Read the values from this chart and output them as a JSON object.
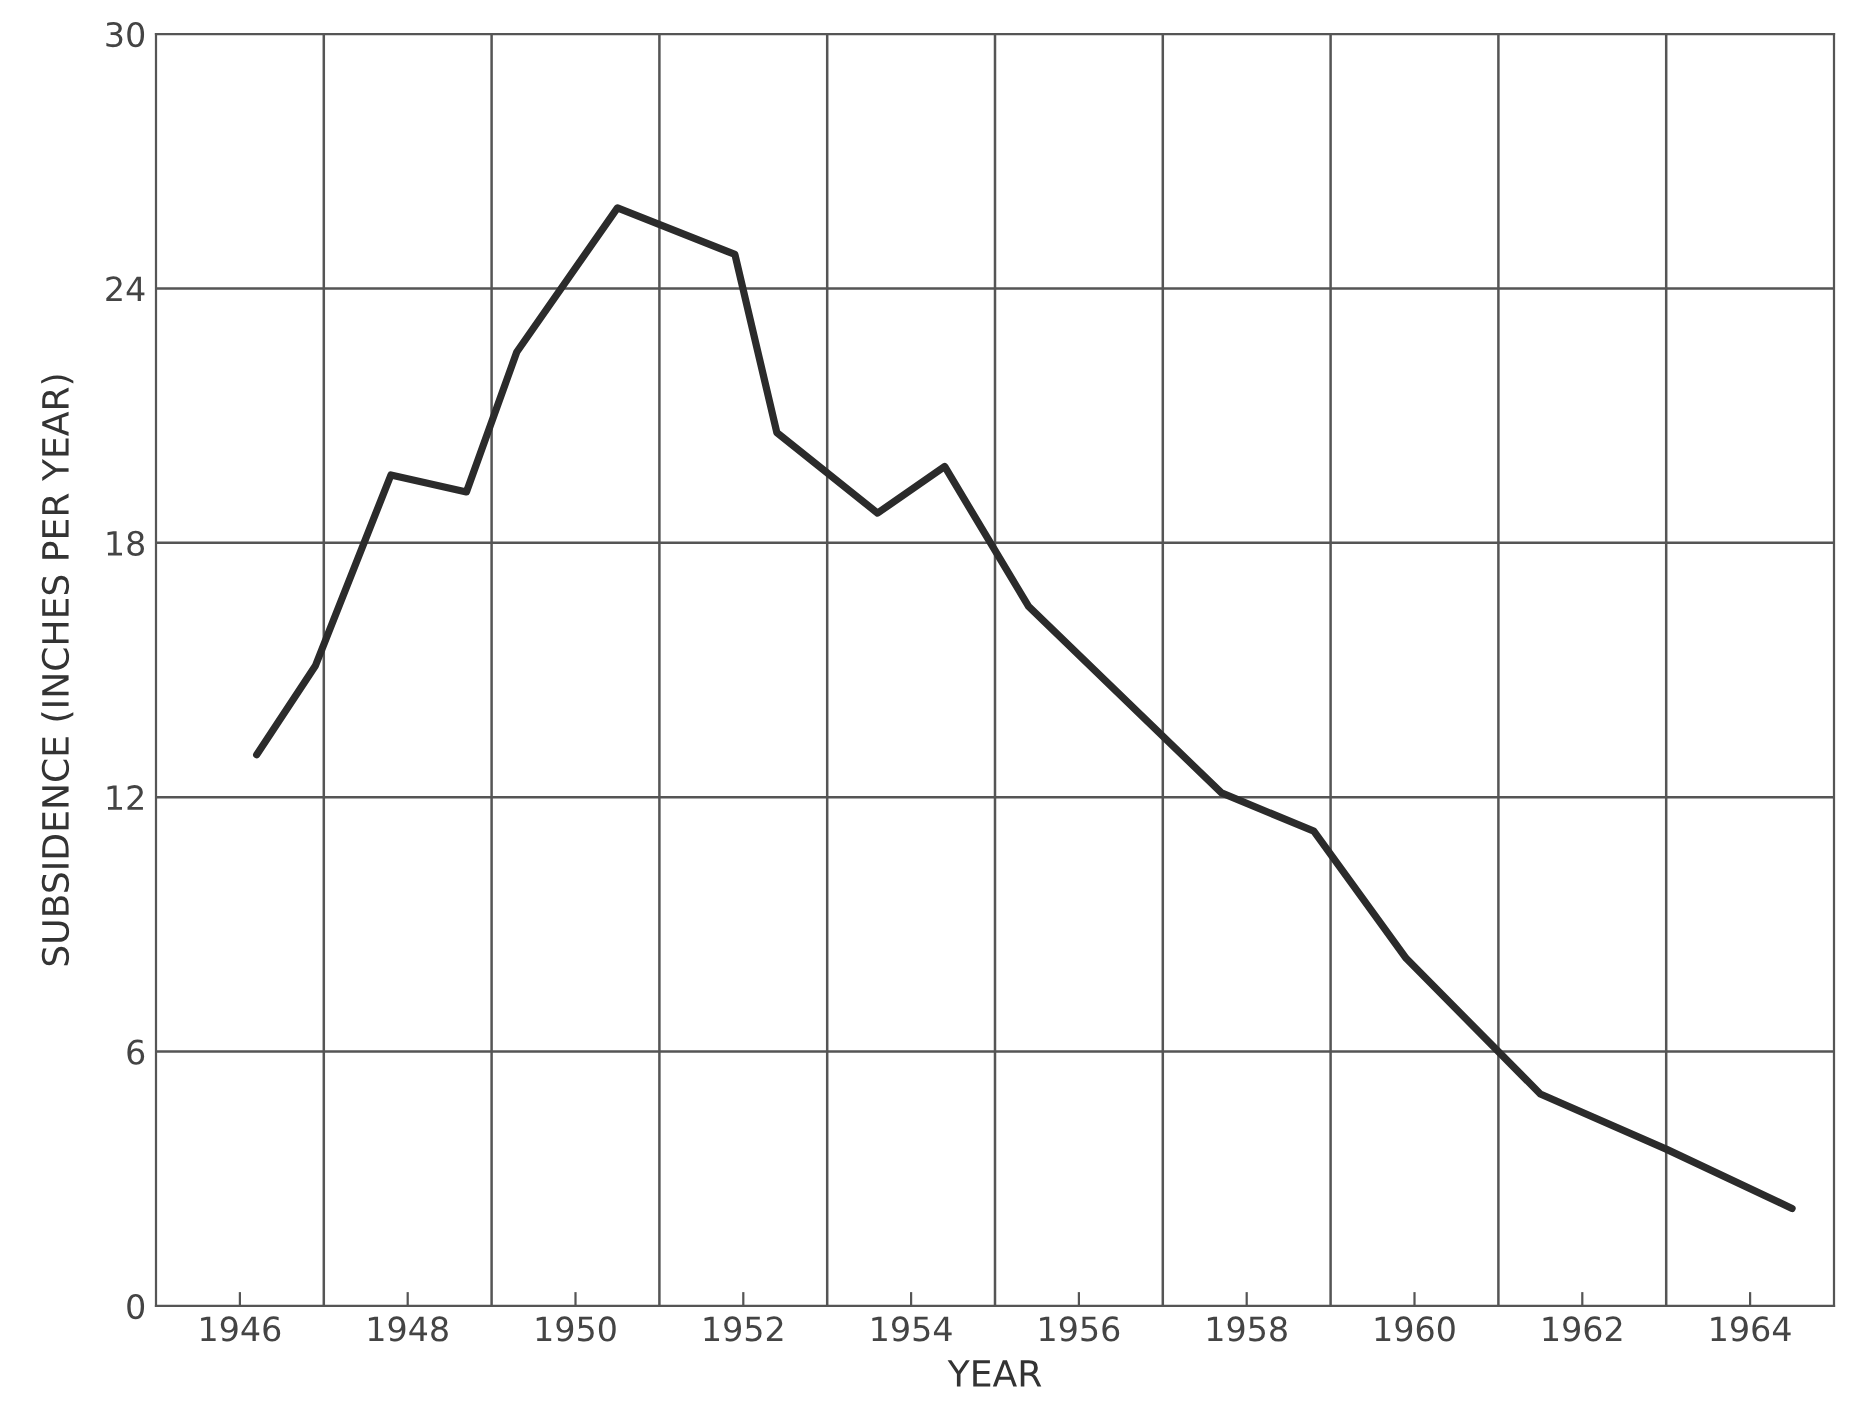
{
  "chart_data": {
    "type": "line",
    "xlabel": "YEAR",
    "ylabel": "SUBSIDENCE (INCHES PER YEAR)",
    "x": [
      1946.2,
      1946.9,
      1947.8,
      1948.7,
      1949.3,
      1950.5,
      1951.9,
      1952.4,
      1953.6,
      1954.4,
      1955.4,
      1957.7,
      1958.8,
      1959.9,
      1961.5,
      1963.0,
      1964.5
    ],
    "series": [
      {
        "color": "#2b2b2b",
        "values": [
          13.0,
          15.1,
          19.6,
          19.2,
          22.5,
          25.9,
          24.8,
          20.6,
          18.7,
          19.8,
          16.5,
          12.1,
          11.2,
          8.2,
          5.0,
          3.7,
          2.3
        ]
      }
    ],
    "xlim": [
      1945,
      1965
    ],
    "xticks": [
      1946,
      1948,
      1950,
      1952,
      1954,
      1956,
      1958,
      1960,
      1962,
      1964
    ],
    "ylim": [
      0,
      30
    ],
    "yticks": [
      0,
      6,
      12,
      18,
      24,
      30
    ],
    "grid": "y",
    "legend": false,
    "marker": "none",
    "line_style": "solid",
    "ref_lines": [
      {
        "axis": "x",
        "value": 1947,
        "color": "#555555"
      },
      {
        "axis": "x",
        "value": 1949,
        "color": "#555555"
      },
      {
        "axis": "x",
        "value": 1951,
        "color": "#555555"
      },
      {
        "axis": "x",
        "value": 1953,
        "color": "#555555"
      },
      {
        "axis": "x",
        "value": 1955,
        "color": "#555555"
      },
      {
        "axis": "x",
        "value": 1957,
        "color": "#555555"
      },
      {
        "axis": "x",
        "value": 1959,
        "color": "#555555"
      },
      {
        "axis": "x",
        "value": 1961,
        "color": "#555555"
      },
      {
        "axis": "x",
        "value": 1963,
        "color": "#555555"
      }
    ]
  }
}
